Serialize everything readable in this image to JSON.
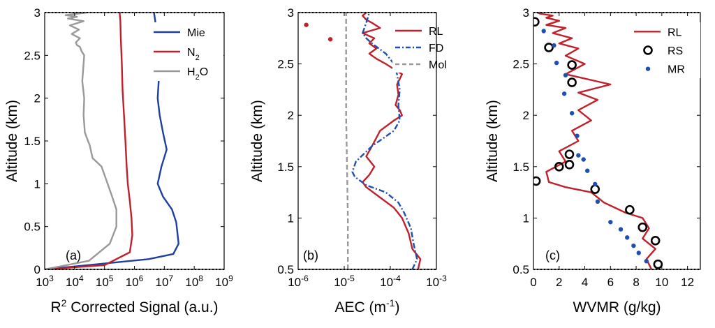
{
  "colors": {
    "mie": "#1f3fa0",
    "n2": "#c0202a",
    "h2o": "#999999",
    "rl": "#c0202a",
    "fd": "#1f4fb0",
    "mol": "#999999",
    "rs": "#000000",
    "mr": "#1f4fb0"
  },
  "chart_data": [
    {
      "type": "line",
      "panel_label": "(a)",
      "xlabel_prefix": "R",
      "xlabel_sup": "2",
      "xlabel_rest": " Corrected Signal (a.u.)",
      "ylabel": "Altitude (km)",
      "xscale": "log",
      "xlim": [
        1000,
        1000000000
      ],
      "ylim": [
        0,
        3
      ],
      "xtick_values": [
        1000,
        10000,
        100000,
        1000000,
        10000000,
        100000000,
        1000000000
      ],
      "xtick_labels": [
        {
          "base": "10",
          "exp": "3"
        },
        {
          "base": "10",
          "exp": "4"
        },
        {
          "base": "10",
          "exp": "5"
        },
        {
          "base": "10",
          "exp": "6"
        },
        {
          "base": "10",
          "exp": "7"
        },
        {
          "base": "10",
          "exp": "8"
        },
        {
          "base": "10",
          "exp": "9"
        }
      ],
      "ytick_values": [
        0,
        0.5,
        1,
        1.5,
        2,
        2.5,
        3
      ],
      "ytick_labels": [
        "0",
        "0.5",
        "1",
        "1.5",
        "2",
        "2.5",
        "3"
      ],
      "legend": [
        {
          "key": "mie",
          "text": "Mie",
          "sub": ""
        },
        {
          "key": "n2",
          "text": "N",
          "sub": "2"
        },
        {
          "key": "h2o",
          "text": "H",
          "sub": "2",
          "tail": "O"
        }
      ],
      "series": [
        {
          "name": "Mie",
          "key": "mie",
          "style": "line",
          "x": [
            1000,
            3000000,
            20000000,
            30000000,
            25000000,
            18000000,
            9000000,
            6000000,
            8000000,
            12000000,
            9000000,
            7000000,
            6000000,
            6500000,
            6000000,
            5000000,
            5000000,
            4500000
          ],
          "y": [
            0,
            0.12,
            0.18,
            0.3,
            0.55,
            0.7,
            0.85,
            1.0,
            1.2,
            1.4,
            1.6,
            1.8,
            2.0,
            2.2,
            2.5,
            2.7,
            2.9,
            3.0
          ]
        },
        {
          "name": "N2",
          "key": "n2",
          "style": "line",
          "x": [
            1000,
            100000,
            700000,
            850000,
            800000,
            700000,
            600000,
            550000,
            500000,
            450000,
            400000,
            380000,
            350000,
            340000,
            320000
          ],
          "y": [
            0,
            0.05,
            0.2,
            0.4,
            0.6,
            0.8,
            1.0,
            1.2,
            1.5,
            1.8,
            2.1,
            2.4,
            2.7,
            2.9,
            3.0
          ]
        },
        {
          "name": "H2O",
          "key": "h2o",
          "style": "line",
          "x": [
            1000,
            30000,
            150000,
            250000,
            250000,
            180000,
            80000,
            40000,
            32000,
            28000,
            22000,
            20000,
            21000,
            18000,
            19000,
            20000,
            21000,
            17000,
            15000,
            12000,
            11000,
            15000,
            8000,
            14000,
            7000,
            20000,
            6000,
            12000,
            5000,
            25000
          ],
          "y": [
            0,
            0.1,
            0.3,
            0.5,
            0.7,
            0.85,
            1.2,
            1.3,
            1.45,
            1.5,
            1.6,
            1.8,
            2.0,
            2.2,
            2.3,
            2.4,
            2.5,
            2.55,
            2.6,
            2.62,
            2.65,
            2.7,
            2.75,
            2.8,
            2.85,
            2.9,
            2.93,
            2.95,
            2.97,
            3.0
          ]
        }
      ]
    },
    {
      "type": "line",
      "panel_label": "(b)",
      "xlabel_prefix": "AEC (m",
      "xlabel_sup": "-1",
      "xlabel_rest": ")",
      "ylabel": "Altitude (km)",
      "xscale": "log",
      "xlim": [
        1e-06,
        0.001
      ],
      "ylim": [
        0.5,
        3
      ],
      "xtick_values": [
        1e-06,
        1e-05,
        0.0001,
        0.001
      ],
      "xtick_labels": [
        {
          "base": "10",
          "exp": "-6"
        },
        {
          "base": "10",
          "exp": "-5"
        },
        {
          "base": "10",
          "exp": "-4"
        },
        {
          "base": "10",
          "exp": "-3"
        }
      ],
      "ytick_values": [
        0.5,
        1,
        1.5,
        2,
        2.5,
        3
      ],
      "ytick_labels": [
        "0.5",
        "1",
        "1.5",
        "2",
        "2.5",
        "3"
      ],
      "legend": [
        {
          "key": "rl",
          "text": "RL",
          "sub": "",
          "dash": ""
        },
        {
          "key": "fd",
          "text": "FD",
          "sub": "",
          "dash": "7 3 2 3"
        },
        {
          "key": "mol",
          "text": "Mol",
          "sub": "",
          "dash": "6 4"
        }
      ],
      "series": [
        {
          "name": "RL",
          "key": "rl",
          "style": "line",
          "x": [
            0.0004,
            0.00045,
            0.0003,
            0.00025,
            0.00018,
            0.00012,
            6e-05,
            3e-05,
            2.5e-05,
            3.5e-05,
            4.5e-05,
            3e-05,
            4e-05,
            6e-05,
            0.00012,
            0.00018,
            0.00016,
            0.00013,
            0.00015,
            0.00014,
            0.00018,
            0.00012,
            8e-05,
            5e-05,
            3.5e-05,
            5e-05,
            3.5e-05,
            4.5e-05,
            2.5e-05,
            6e-05,
            4e-05,
            3e-05,
            2.5e-05,
            3e-05
          ],
          "y": [
            0.5,
            0.6,
            0.7,
            0.85,
            1.0,
            1.1,
            1.2,
            1.3,
            1.35,
            1.42,
            1.5,
            1.6,
            1.7,
            1.85,
            1.95,
            2.0,
            2.05,
            2.1,
            2.2,
            2.3,
            2.4,
            2.45,
            2.5,
            2.55,
            2.6,
            2.65,
            2.7,
            2.75,
            2.8,
            2.85,
            2.9,
            2.93,
            2.97,
            3.0
          ]
        },
        {
          "name": "FD",
          "key": "fd",
          "style": "dashdot",
          "x": [
            0.0003,
            0.00038,
            0.00032,
            0.00028,
            0.0002,
            0.00015,
            8e-05,
            3e-05,
            1.7e-05,
            1.5e-05,
            1.8e-05,
            4e-05,
            0.00012,
            0.00016,
            0.00015,
            0.00016,
            0.00014,
            0.00012,
            8e-05,
            4e-05,
            3e-05,
            2.5e-05,
            3e-05,
            3.5e-05
          ],
          "y": [
            0.5,
            0.6,
            0.75,
            0.9,
            1.05,
            1.15,
            1.25,
            1.32,
            1.4,
            1.45,
            1.55,
            1.7,
            1.85,
            1.95,
            2.1,
            2.25,
            2.4,
            2.5,
            2.6,
            2.7,
            2.75,
            2.8,
            2.9,
            3.0
          ]
        },
        {
          "name": "Mol",
          "key": "mol",
          "style": "dashed",
          "x": [
            1.2e-05,
            1.2e-05,
            1.15e-05,
            1.1e-05,
            1.1e-05
          ],
          "y": [
            0.5,
            1.0,
            1.5,
            2.0,
            3.0
          ]
        },
        {
          "name": "RL points",
          "key": "rl",
          "style": "dots",
          "x": [
            1.5e-06,
            5e-06
          ],
          "y": [
            2.88,
            2.74
          ]
        }
      ]
    },
    {
      "type": "line",
      "panel_label": "(c)",
      "xlabel_prefix": "WVMR (g/kg)",
      "xlabel_sup": "",
      "xlabel_rest": "",
      "ylabel": "Altitude (km)",
      "xscale": "linear",
      "xlim": [
        0,
        13
      ],
      "ylim": [
        0.5,
        3
      ],
      "xtick_values": [
        0,
        2,
        4,
        6,
        8,
        10,
        12
      ],
      "xtick_labels": [
        {
          "base": "0",
          "exp": ""
        },
        {
          "base": "2",
          "exp": ""
        },
        {
          "base": "4",
          "exp": ""
        },
        {
          "base": "6",
          "exp": ""
        },
        {
          "base": "8",
          "exp": ""
        },
        {
          "base": "10",
          "exp": ""
        },
        {
          "base": "12",
          "exp": ""
        }
      ],
      "ytick_values": [
        0.5,
        1,
        1.5,
        2,
        2.5,
        3
      ],
      "ytick_labels": [
        "0.5",
        "1",
        "1.5",
        "2",
        "2.5",
        "3"
      ],
      "legend": [
        {
          "key": "rl",
          "text": "RL",
          "sub": "",
          "marker": "line"
        },
        {
          "key": "rs",
          "text": "RS",
          "sub": "",
          "marker": "circle"
        },
        {
          "key": "mr",
          "text": "MR",
          "sub": "",
          "marker": "dot"
        }
      ],
      "series": [
        {
          "name": "RL",
          "key": "rl",
          "style": "line",
          "x": [
            9.2,
            8.8,
            9.5,
            8.5,
            9.0,
            8.5,
            7.2,
            5.5,
            4.5,
            2.5,
            1.2,
            1.0,
            2.5,
            2.0,
            3.5,
            3.0,
            4.5,
            3.5,
            5.0,
            3.5,
            6.0,
            2.5,
            4.0,
            2.5,
            3.5,
            2.0,
            3.0,
            1.5,
            2.5,
            1.0,
            2.0,
            1.0,
            1.5,
            0.5,
            0.3
          ],
          "y": [
            0.5,
            0.6,
            0.7,
            0.8,
            0.9,
            1.0,
            1.05,
            1.15,
            1.25,
            1.3,
            1.35,
            1.45,
            1.55,
            1.65,
            1.75,
            1.85,
            1.95,
            2.05,
            2.15,
            2.22,
            2.3,
            2.4,
            2.5,
            2.58,
            2.65,
            2.7,
            2.75,
            2.8,
            2.85,
            2.88,
            2.92,
            2.95,
            2.97,
            2.99,
            3.0
          ]
        },
        {
          "name": "RS",
          "key": "rs",
          "style": "circles",
          "x": [
            9.7,
            9.5,
            8.5,
            7.5,
            4.8,
            0.2,
            2.0,
            2.8,
            2.8,
            3.0,
            3.0,
            1.2,
            0.1
          ],
          "y": [
            0.55,
            0.78,
            0.91,
            1.08,
            1.28,
            1.36,
            1.5,
            1.52,
            1.62,
            2.32,
            2.49,
            2.66,
            2.91
          ]
        },
        {
          "name": "MR",
          "key": "mr",
          "style": "dots",
          "x": [
            8.8,
            8.2,
            7.8,
            7.3,
            6.8,
            6.0,
            5.0,
            4.8,
            4.2,
            3.9,
            3.5,
            3.4,
            3.0,
            2.4,
            2.5,
            1.8,
            1.6,
            0.8
          ],
          "y": [
            0.58,
            0.66,
            0.73,
            0.81,
            0.89,
            0.96,
            1.16,
            1.33,
            1.46,
            1.57,
            1.61,
            1.8,
            2.02,
            2.21,
            2.39,
            2.51,
            2.68,
            2.82
          ]
        }
      ]
    }
  ]
}
